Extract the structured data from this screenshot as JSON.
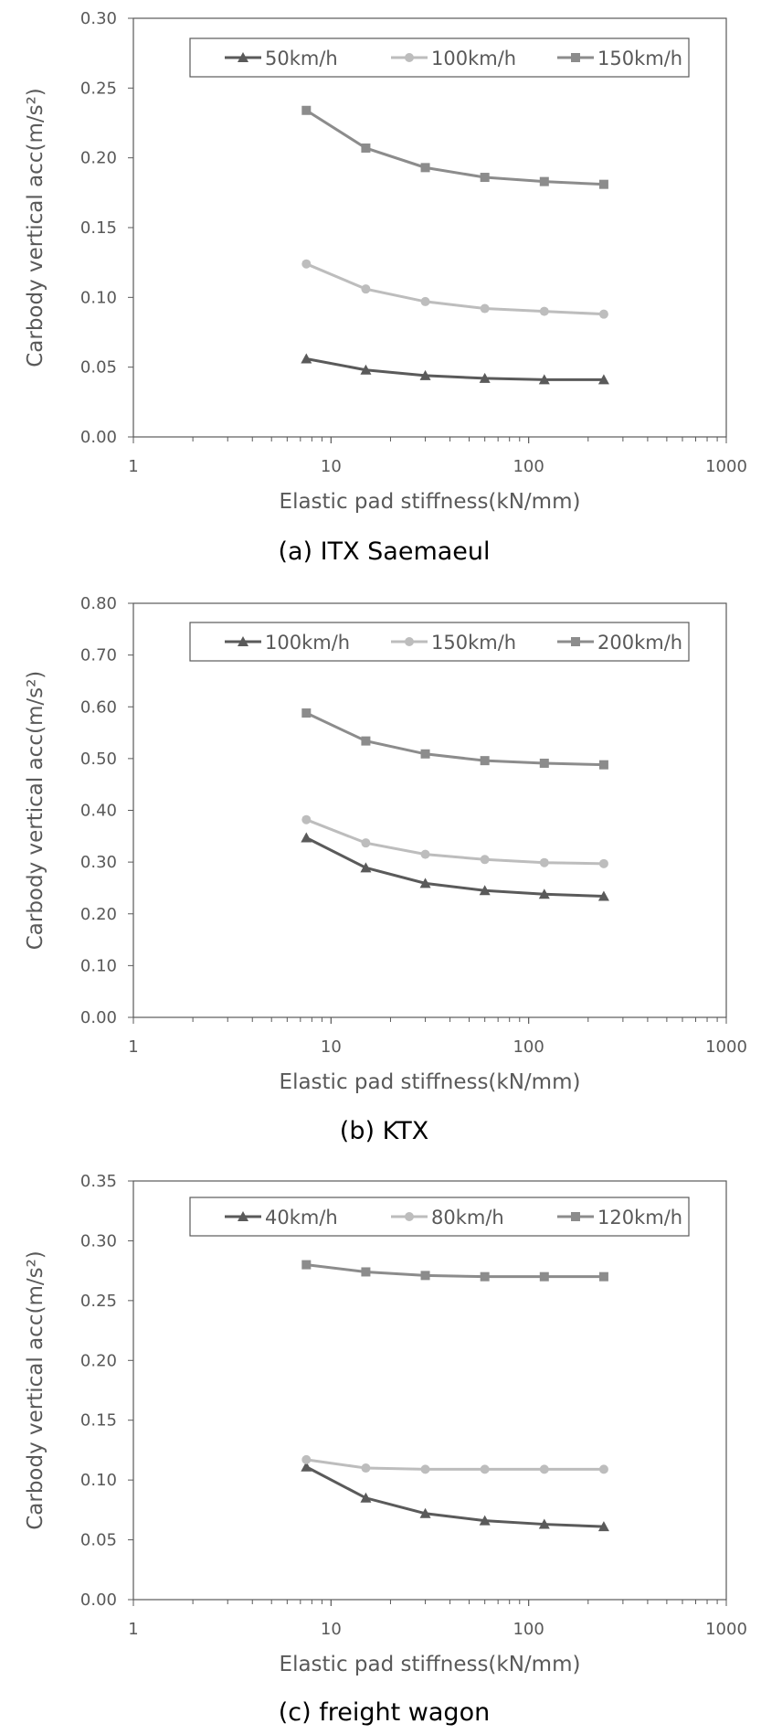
{
  "colors": {
    "series1": "#5a5a5a",
    "series2": "#bdbdbd",
    "series3": "#8c8c8c",
    "axis": "#595959",
    "text": "#595959"
  },
  "chart_data": [
    {
      "type": "line",
      "caption": "(a) ITX Saemaeul",
      "xlabel": "Elastic pad stiffness(kN/mm)",
      "ylabel": "Carbody vertical acc(m/s²)",
      "x_scale": "log",
      "xlim": [
        1,
        1000
      ],
      "xticks": [
        "1",
        "10",
        "100",
        "1000"
      ],
      "ylim": [
        0,
        0.3
      ],
      "yticks": [
        "0.00",
        "0.05",
        "0.10",
        "0.15",
        "0.20",
        "0.25",
        "0.30"
      ],
      "grid": false,
      "legend": "top",
      "x": [
        7.5,
        15,
        30,
        60,
        120,
        240
      ],
      "series": [
        {
          "name": "50km/h",
          "marker": "triangle",
          "values": [
            0.056,
            0.048,
            0.044,
            0.042,
            0.041,
            0.041
          ]
        },
        {
          "name": "100km/h",
          "marker": "circle",
          "values": [
            0.124,
            0.106,
            0.097,
            0.092,
            0.09,
            0.088
          ]
        },
        {
          "name": "150km/h",
          "marker": "square",
          "values": [
            0.234,
            0.207,
            0.193,
            0.186,
            0.183,
            0.181
          ]
        }
      ]
    },
    {
      "type": "line",
      "caption": "(b) KTX",
      "xlabel": "Elastic pad stiffness(kN/mm)",
      "ylabel": "Carbody vertical acc(m/s²)",
      "x_scale": "log",
      "xlim": [
        1,
        1000
      ],
      "xticks": [
        "1",
        "10",
        "100",
        "1000"
      ],
      "ylim": [
        0,
        0.8
      ],
      "yticks": [
        "0.00",
        "0.10",
        "0.20",
        "0.30",
        "0.40",
        "0.50",
        "0.60",
        "0.70",
        "0.80"
      ],
      "grid": false,
      "legend": "top",
      "x": [
        7.5,
        15,
        30,
        60,
        120,
        240
      ],
      "series": [
        {
          "name": "100km/h",
          "marker": "triangle",
          "values": [
            0.347,
            0.289,
            0.259,
            0.245,
            0.238,
            0.234
          ]
        },
        {
          "name": "150km/h",
          "marker": "circle",
          "values": [
            0.382,
            0.337,
            0.315,
            0.305,
            0.299,
            0.297
          ]
        },
        {
          "name": "200km/h",
          "marker": "square",
          "values": [
            0.588,
            0.534,
            0.509,
            0.496,
            0.491,
            0.488
          ]
        }
      ]
    },
    {
      "type": "line",
      "caption": "(c) freight wagon",
      "xlabel": "Elastic pad stiffness(kN/mm)",
      "ylabel": "Carbody vertical acc(m/s²)",
      "x_scale": "log",
      "xlim": [
        1,
        1000
      ],
      "xticks": [
        "1",
        "10",
        "100",
        "1000"
      ],
      "ylim": [
        0,
        0.35
      ],
      "yticks": [
        "0.00",
        "0.05",
        "0.10",
        "0.15",
        "0.20",
        "0.25",
        "0.30",
        "0.35"
      ],
      "grid": false,
      "legend": "top",
      "x": [
        7.5,
        15,
        30,
        60,
        120,
        240
      ],
      "series": [
        {
          "name": "40km/h",
          "marker": "triangle",
          "values": [
            0.111,
            0.085,
            0.072,
            0.066,
            0.063,
            0.061
          ]
        },
        {
          "name": "80km/h",
          "marker": "circle",
          "values": [
            0.117,
            0.11,
            0.109,
            0.109,
            0.109,
            0.109
          ]
        },
        {
          "name": "120km/h",
          "marker": "square",
          "values": [
            0.28,
            0.274,
            0.271,
            0.27,
            0.27,
            0.27
          ]
        }
      ]
    }
  ]
}
